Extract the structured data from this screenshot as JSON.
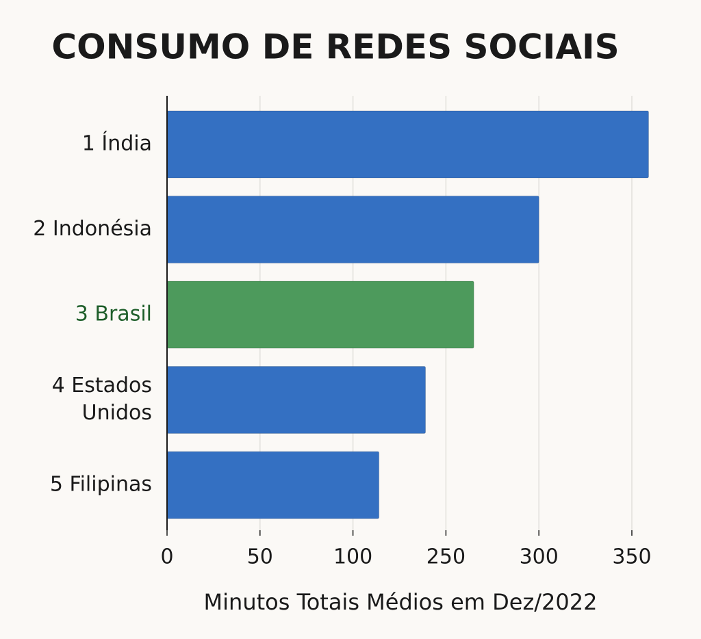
{
  "chart_data": {
    "type": "barh",
    "title": "CONSUMO DE REDES SOCIAIS",
    "categories": [
      [
        "1  Índia"
      ],
      [
        "2  Indonésia"
      ],
      [
        "3  Brasil"
      ],
      [
        "4  Estados",
        "Unidos"
      ],
      [
        "5  Filipinas"
      ]
    ],
    "values": [
      359,
      300,
      265,
      217,
      142
    ],
    "colors": [
      "#3470c2",
      "#3470c2",
      "#4d9a5c",
      "#3470c2",
      "#3470c2"
    ],
    "label_colors": [
      "#1a1a1a",
      "#1a1a1a",
      "#1e5e2a",
      "#1a1a1a",
      "#1a1a1a"
    ],
    "xlabel": "Minutos Totais Médios em Dez/2022",
    "xlim": [
      0,
      360
    ],
    "xticks": [
      0,
      50,
      100,
      250,
      300,
      350
    ],
    "grid": true
  }
}
